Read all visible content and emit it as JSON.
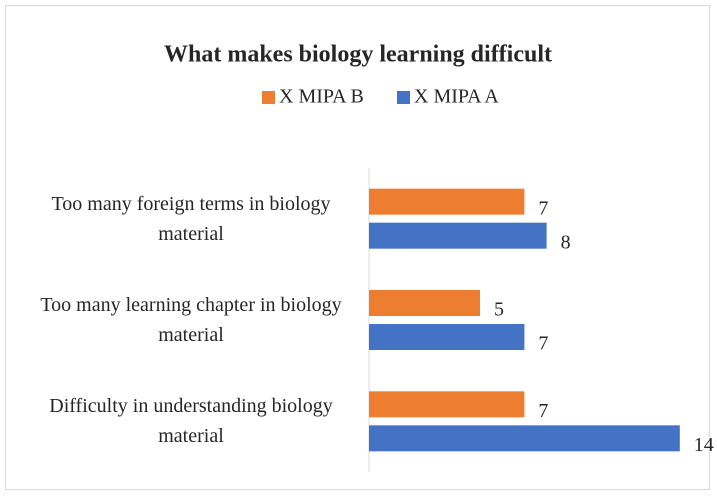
{
  "chart_data": {
    "type": "bar",
    "orientation": "horizontal",
    "title": "What makes biology learning difficult",
    "categories": [
      "Too many foreign terms in biology material",
      "Too many learning chapter in biology material",
      "Difficulty in understanding biology material"
    ],
    "series": [
      {
        "name": "X MIPA B",
        "color": "#ed7d31",
        "values": [
          7,
          5,
          7
        ]
      },
      {
        "name": "X MIPA A",
        "color": "#4472c4",
        "values": [
          8,
          7,
          14
        ]
      }
    ],
    "xlim": [
      0,
      15
    ],
    "legend": "top"
  }
}
